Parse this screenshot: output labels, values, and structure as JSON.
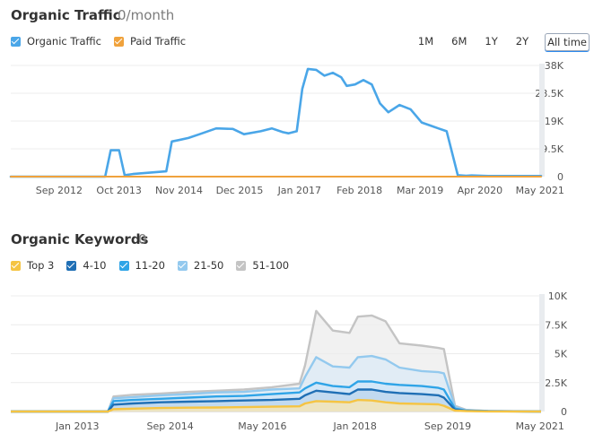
{
  "traffic": {
    "title": "Organic Traffic",
    "subtitle": "0/month",
    "legend": [
      {
        "label": "Organic Traffic",
        "color": "#4aa6e8"
      },
      {
        "label": "Paid Traffic",
        "color": "#f0a23c"
      }
    ],
    "ranges": [
      "1M",
      "6M",
      "1Y",
      "2Y",
      "All time"
    ],
    "active_range": "All time"
  },
  "keywords": {
    "title": "Organic Keywords",
    "subtitle": "0",
    "legend": [
      {
        "label": "Top 3",
        "color": "#f5c443"
      },
      {
        "label": "4-10",
        "color": "#1f6fb5"
      },
      {
        "label": "11-20",
        "color": "#2fa4e7"
      },
      {
        "label": "21-50",
        "color": "#93c9ee"
      },
      {
        "label": "51-100",
        "color": "#c4c4c4"
      }
    ]
  },
  "chart_data": [
    {
      "type": "line",
      "title": "Organic Traffic",
      "x_range": [
        2011.8,
        2021.35
      ],
      "ylim": [
        0,
        38000
      ],
      "y_ticks": [
        "0",
        "9.5K",
        "19K",
        "28.5K",
        "38K"
      ],
      "x_ticks": [
        {
          "label": "Sep 2012",
          "x": 2012.67
        },
        {
          "label": "Oct 2013",
          "x": 2013.75
        },
        {
          "label": "Nov 2014",
          "x": 2014.83
        },
        {
          "label": "Dec 2015",
          "x": 2015.92
        },
        {
          "label": "Jan 2017",
          "x": 2017.0
        },
        {
          "label": "Feb 2018",
          "x": 2018.08
        },
        {
          "label": "Mar 2019",
          "x": 2019.17
        },
        {
          "label": "Apr 2020",
          "x": 2020.25
        },
        {
          "label": "May 2021",
          "x": 2021.33
        }
      ],
      "series": [
        {
          "name": "Organic Traffic",
          "color": "#4aa6e8",
          "x": [
            2011.8,
            2013.5,
            2013.6,
            2013.75,
            2013.85,
            2014.0,
            2014.4,
            2014.6,
            2014.7,
            2014.83,
            2015.0,
            2015.2,
            2015.5,
            2015.8,
            2016.0,
            2016.3,
            2016.5,
            2016.7,
            2016.8,
            2016.95,
            2017.05,
            2017.15,
            2017.3,
            2017.45,
            2017.6,
            2017.75,
            2017.85,
            2018.0,
            2018.15,
            2018.3,
            2018.45,
            2018.6,
            2018.8,
            2019.0,
            2019.2,
            2019.35,
            2019.5,
            2019.65,
            2019.85,
            2020.0,
            2020.1,
            2020.4,
            2021.35
          ],
          "y": [
            0,
            0,
            9000,
            9000,
            500,
            900,
            1500,
            1800,
            12000,
            12500,
            13200,
            14500,
            16500,
            16300,
            14500,
            15500,
            16500,
            15200,
            14800,
            15500,
            30000,
            36800,
            36500,
            34500,
            35500,
            34000,
            31000,
            31500,
            33000,
            31500,
            25000,
            22000,
            24500,
            23000,
            18500,
            17500,
            16500,
            15500,
            500,
            300,
            400,
            200,
            200
          ]
        },
        {
          "name": "Paid Traffic",
          "color": "#f0a23c",
          "x": [
            2011.8,
            2021.35
          ],
          "y": [
            0,
            0
          ]
        }
      ]
    },
    {
      "type": "area",
      "title": "Organic Keywords",
      "x_range": [
        2011.8,
        2021.35
      ],
      "ylim": [
        0,
        10000
      ],
      "y_ticks": [
        "0",
        "2.5K",
        "5K",
        "7.5K",
        "10K"
      ],
      "x_ticks": [
        {
          "label": "Jan 2013",
          "x": 2013.0
        },
        {
          "label": "Sep 2014",
          "x": 2014.67
        },
        {
          "label": "May 2016",
          "x": 2016.33
        },
        {
          "label": "Jan 2018",
          "x": 2018.0
        },
        {
          "label": "Sep 2019",
          "x": 2019.67
        },
        {
          "label": "May 2021",
          "x": 2021.33
        }
      ],
      "x": [
        2011.8,
        2013.55,
        2013.65,
        2014.0,
        2014.5,
        2015.0,
        2015.5,
        2016.0,
        2016.5,
        2017.0,
        2017.1,
        2017.3,
        2017.6,
        2017.9,
        2018.05,
        2018.3,
        2018.55,
        2018.8,
        2019.2,
        2019.5,
        2019.6,
        2019.8,
        2020.0,
        2020.4,
        2021.35
      ],
      "series": [
        {
          "name": "Top 3",
          "color": "#f5c443",
          "values": [
            0,
            0,
            200,
            250,
            300,
            330,
            350,
            380,
            420,
            450,
            700,
            900,
            850,
            800,
            1000,
            950,
            800,
            700,
            650,
            620,
            500,
            80,
            40,
            10,
            0
          ]
        },
        {
          "name": "4-10",
          "color": "#1f6fb5",
          "values": [
            0,
            0,
            600,
            700,
            800,
            850,
            900,
            950,
            1000,
            1100,
            1400,
            1800,
            1650,
            1500,
            1900,
            1900,
            1700,
            1600,
            1500,
            1400,
            1200,
            150,
            60,
            20,
            0
          ]
        },
        {
          "name": "11-20",
          "color": "#2fa4e7",
          "values": [
            0,
            0,
            900,
            1000,
            1100,
            1200,
            1300,
            1350,
            1500,
            1650,
            2000,
            2500,
            2200,
            2100,
            2600,
            2600,
            2400,
            2300,
            2200,
            2050,
            1900,
            250,
            80,
            30,
            0
          ]
        },
        {
          "name": "21-50",
          "color": "#93c9ee",
          "values": [
            0,
            0,
            1150,
            1250,
            1400,
            1500,
            1650,
            1700,
            1900,
            2000,
            3000,
            4700,
            3900,
            3800,
            4700,
            4800,
            4500,
            3800,
            3500,
            3400,
            3300,
            400,
            120,
            40,
            0
          ]
        },
        {
          "name": "51-100",
          "color": "#c4c4c4",
          "values": [
            0,
            0,
            1300,
            1450,
            1550,
            1700,
            1800,
            1900,
            2100,
            2400,
            4000,
            8700,
            7000,
            6800,
            8200,
            8300,
            7800,
            5900,
            5700,
            5500,
            5400,
            500,
            150,
            50,
            0
          ]
        }
      ]
    }
  ]
}
